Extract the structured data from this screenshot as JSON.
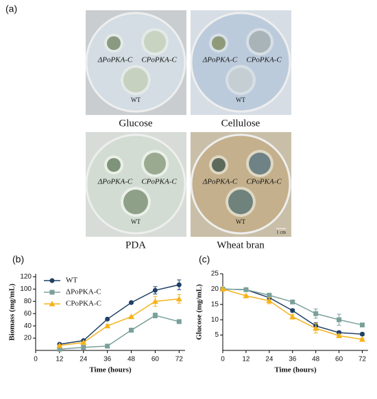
{
  "panel_labels": [
    "(a)",
    "(b)",
    "(c)"
  ],
  "plates": [
    {
      "medium": "Glucose",
      "strains": [
        "ΔPoPKA-C",
        "CPoPKA-C",
        "WT"
      ]
    },
    {
      "medium": "Cellulose",
      "strains": [
        "ΔPoPKA-C",
        "CPoPKA-C",
        "WT"
      ]
    },
    {
      "medium": "PDA",
      "strains": [
        "ΔPoPKA-C",
        "CPoPKA-C",
        "WT"
      ]
    },
    {
      "medium": "Wheat bran",
      "strains": [
        "ΔPoPKA-C",
        "CPoPKA-C",
        "WT"
      ]
    }
  ],
  "scale_bar": "1 cm",
  "chart_data": [
    {
      "type": "line",
      "xlabel": "Time (hours)",
      "ylabel": "Biomass (mg/mL)",
      "x": [
        12,
        24,
        36,
        48,
        60,
        72
      ],
      "xlim": [
        0,
        75
      ],
      "xticks": [
        0,
        12,
        24,
        36,
        48,
        60,
        72
      ],
      "ylim": [
        0,
        125
      ],
      "yticks": [
        20,
        40,
        60,
        80,
        100,
        120
      ],
      "legend": "upper left",
      "series": [
        {
          "name": "WT",
          "color": "#1f3f66",
          "marker": "circle",
          "values": [
            10,
            16,
            51,
            78,
            98,
            107
          ],
          "errors": [
            1,
            1,
            1,
            1,
            6,
            8
          ]
        },
        {
          "name": "ΔPoPKA-C",
          "color": "#7aa09a",
          "marker": "square",
          "values": [
            2,
            5,
            7,
            33,
            57,
            47
          ],
          "errors": [
            1,
            1,
            1,
            1,
            4,
            3
          ]
        },
        {
          "name": "CPoPKA-C",
          "color": "#f5b21b",
          "marker": "triangle",
          "values": [
            8,
            13,
            40,
            55,
            80,
            84
          ],
          "errors": [
            1,
            1,
            2,
            1,
            8,
            7
          ]
        }
      ]
    },
    {
      "type": "line",
      "xlabel": "Time (hours)",
      "ylabel": "Glucose (mg/mL)",
      "x": [
        0,
        12,
        24,
        36,
        48,
        60,
        72
      ],
      "xlim": [
        0,
        75
      ],
      "xticks": [
        0,
        12,
        24,
        36,
        48,
        60,
        72
      ],
      "ylim": [
        0,
        25
      ],
      "yticks": [
        5,
        10,
        15,
        20,
        25
      ],
      "series": [
        {
          "color": "#1f3f66",
          "marker": "circle",
          "values": [
            20,
            19.8,
            17.2,
            13,
            8,
            5.8,
            5.3
          ],
          "errors": [
            0.2,
            0.2,
            0.5,
            0.5,
            1,
            0.5,
            0.5
          ]
        },
        {
          "color": "#7aa09a",
          "marker": "square",
          "values": [
            20,
            19.8,
            18,
            15.8,
            12,
            10,
            8.3
          ],
          "errors": [
            0.2,
            0.2,
            0.5,
            0.3,
            1.5,
            1.8,
            0.4
          ]
        },
        {
          "color": "#f5b21b",
          "marker": "triangle",
          "values": [
            20,
            17.8,
            16.2,
            11,
            7.2,
            4.8,
            3.6
          ],
          "errors": [
            0.2,
            0.3,
            1,
            0.8,
            1.5,
            0.5,
            0.4
          ]
        }
      ]
    }
  ]
}
